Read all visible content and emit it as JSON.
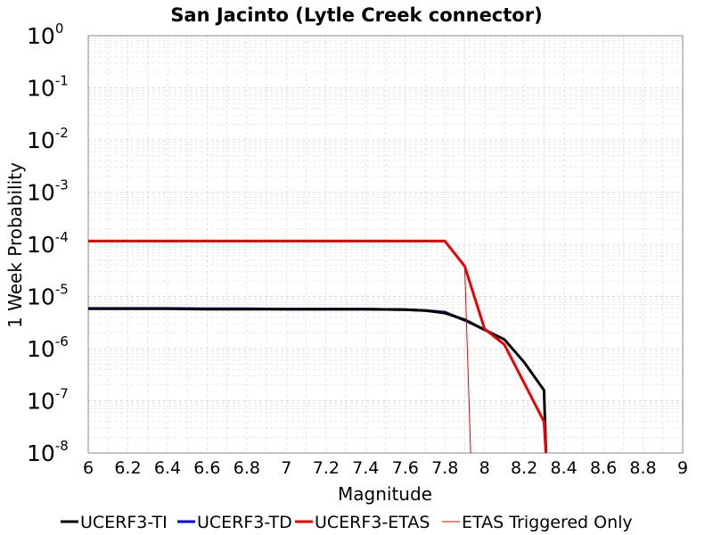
{
  "chart_data": {
    "type": "line",
    "title": "San Jacinto (Lytle Creek connector)",
    "xlabel": "Magnitude",
    "ylabel": "1 Week Probability",
    "xlim": [
      6,
      9
    ],
    "ylim": [
      1e-08,
      1
    ],
    "yscale": "log",
    "grid": true,
    "legend_position": "bottom",
    "x_ticks": [
      "6",
      "6.2",
      "6.4",
      "6.6",
      "6.8",
      "7",
      "7.2",
      "7.4",
      "7.6",
      "7.8",
      "8",
      "8.2",
      "8.4",
      "8.6",
      "8.8",
      "9"
    ],
    "y_ticks": [
      {
        "base": "10",
        "exp": "0"
      },
      {
        "base": "10",
        "exp": "-1"
      },
      {
        "base": "10",
        "exp": "-2"
      },
      {
        "base": "10",
        "exp": "-3"
      },
      {
        "base": "10",
        "exp": "-4"
      },
      {
        "base": "10",
        "exp": "-5"
      },
      {
        "base": "10",
        "exp": "-6"
      },
      {
        "base": "10",
        "exp": "-7"
      },
      {
        "base": "10",
        "exp": "-8"
      }
    ],
    "series": [
      {
        "name": "UCERF3-TI",
        "color": "#000000",
        "width": 3,
        "x": [
          6.0,
          6.2,
          6.4,
          6.6,
          6.8,
          7.0,
          7.2,
          7.4,
          7.6,
          7.7,
          7.8,
          7.9,
          8.0,
          8.1,
          8.2,
          8.3,
          8.31
        ],
        "y": [
          5.8e-06,
          5.8e-06,
          5.8e-06,
          5.7e-06,
          5.7e-06,
          5.7e-06,
          5.7e-06,
          5.7e-06,
          5.6e-06,
          5.4e-06,
          4.8e-06,
          3.6e-06,
          2.3e-06,
          1.5e-06,
          5.5e-07,
          1.6e-07,
          1e-08
        ]
      },
      {
        "name": "UCERF3-TD",
        "color": "#0000ee",
        "width": 3,
        "x": [
          6.0,
          6.2,
          6.4,
          6.6,
          6.8,
          7.0,
          7.2,
          7.4,
          7.6,
          7.7,
          7.8,
          7.9,
          8.0
        ],
        "y": [
          5.9e-06,
          5.9e-06,
          5.9e-06,
          5.8e-06,
          5.8e-06,
          5.7e-06,
          5.7e-06,
          5.7e-06,
          5.6e-06,
          5.4e-06,
          5e-06,
          3.5e-06,
          2.3e-06
        ]
      },
      {
        "name": "UCERF3-ETAS",
        "color": "#ee0000",
        "width": 3,
        "x": [
          6.0,
          6.2,
          6.4,
          6.6,
          6.8,
          7.0,
          7.2,
          7.4,
          7.6,
          7.7,
          7.8,
          7.9,
          8.0,
          8.1,
          8.2,
          8.3,
          8.31
        ],
        "y": [
          0.000115,
          0.000115,
          0.000115,
          0.000115,
          0.000115,
          0.000115,
          0.000115,
          0.000115,
          0.000115,
          0.000115,
          0.000115,
          3.8e-05,
          2.4e-06,
          1.2e-06,
          2.2e-07,
          4e-08,
          1e-08
        ]
      },
      {
        "name": "ETAS Triggered Only",
        "color": "#ee0000",
        "width": 1,
        "x": [
          7.9,
          7.93
        ],
        "y": [
          3.8e-05,
          1e-08
        ]
      }
    ]
  }
}
